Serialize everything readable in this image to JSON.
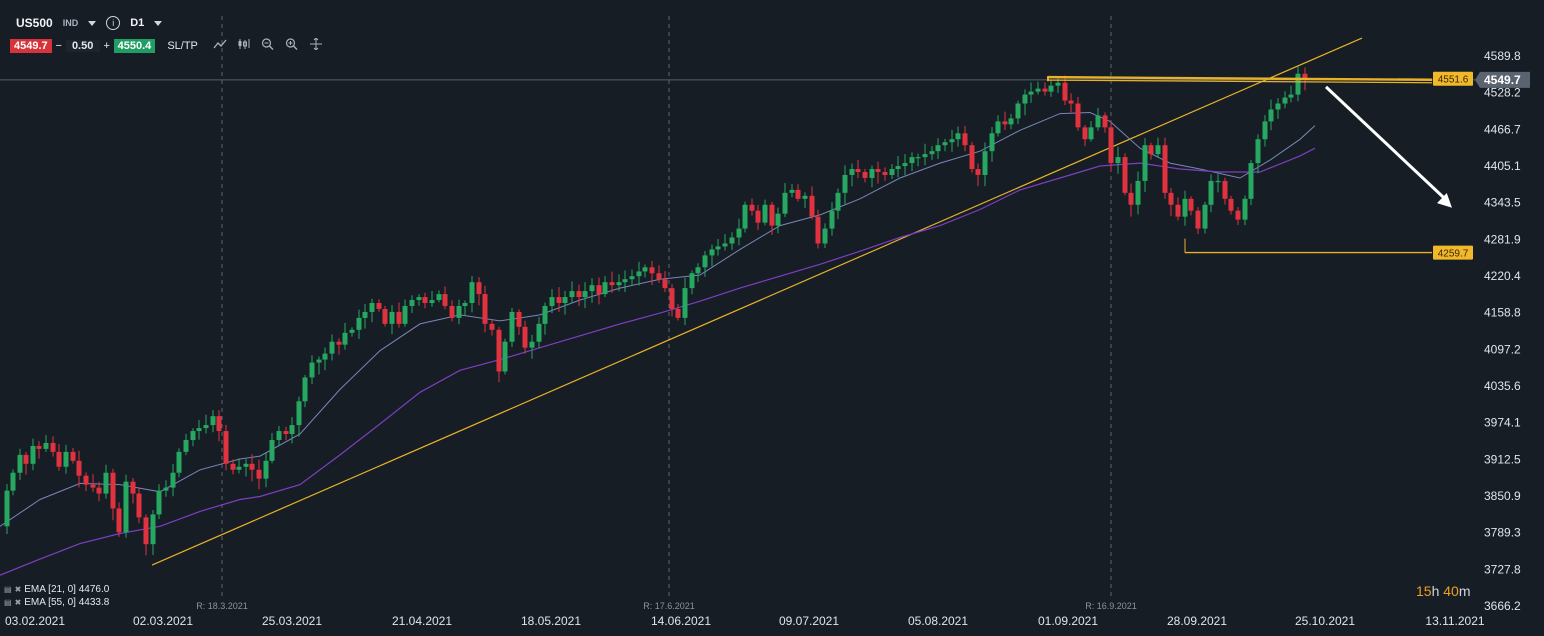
{
  "toolbar": {
    "symbol": "US500",
    "instrument_type": "IND",
    "timeframe": "D1",
    "bid": "4549.7",
    "ask": "4550.4",
    "quantity": "0.50",
    "minus": "−",
    "plus": "+",
    "sltp": "SL/TP",
    "info_icon": "info-icon",
    "tool_icons": [
      "line-chart-icon",
      "candlestick-icon",
      "zoom-out-icon",
      "zoom-in-icon",
      "crosshair-move-icon"
    ]
  },
  "legend": [
    {
      "label": "EMA [21, 0] 4476.0",
      "icons": "eye-off-icon close-icon"
    },
    {
      "label": "EMA [55, 0] 4433.8",
      "icons": "eye-off-icon close-icon"
    }
  ],
  "timer": {
    "h": "15",
    "h_unit": "h",
    "m": "40",
    "m_unit": "m"
  },
  "colors": {
    "background": "#161d25",
    "up_candle": "#26a861",
    "down_candle": "#e0323f",
    "ema21": "#7a86b8",
    "ema55": "#7d3fc0",
    "trendline": "#e8b12a",
    "current_price_tag": "#5a6470",
    "level_tag": "#f0b82a",
    "arrow": "#ffffff"
  },
  "chart_data": {
    "type": "candlestick",
    "symbol": "US500",
    "timeframe": "D1",
    "ylim": [
      3640,
      4630
    ],
    "y_ticks": [
      3666.2,
      3727.8,
      3789.3,
      3850.9,
      3912.5,
      3974.1,
      4035.6,
      4097.2,
      4158.8,
      4220.4,
      4281.9,
      4343.5,
      4405.1,
      4466.7,
      4528.2,
      4589.8
    ],
    "x_labels": [
      "03.02.2021",
      "02.03.2021",
      "25.03.2021",
      "21.04.2021",
      "18.05.2021",
      "14.06.2021",
      "09.07.2021",
      "05.08.2021",
      "01.09.2021",
      "28.09.2021",
      "25.10.2021",
      "13.11.2021"
    ],
    "rollover_markers": [
      "R: 18.3.2021",
      "R: 17.6.2021",
      "R: 16.9.2021"
    ],
    "current_price": 4549.7,
    "price_levels": [
      4551.6,
      4259.7
    ],
    "close_path": [
      [
        0,
        3800
      ],
      [
        7,
        3860
      ],
      [
        13,
        3890
      ],
      [
        20,
        3920
      ],
      [
        26,
        3905
      ],
      [
        33,
        3935
      ],
      [
        39,
        3930
      ],
      [
        46,
        3940
      ],
      [
        53,
        3925
      ],
      [
        59,
        3900
      ],
      [
        66,
        3925
      ],
      [
        73,
        3910
      ],
      [
        79,
        3885
      ],
      [
        86,
        3870
      ],
      [
        93,
        3865
      ],
      [
        99,
        3855
      ],
      [
        106,
        3890
      ],
      [
        113,
        3830
      ],
      [
        119,
        3790
      ],
      [
        126,
        3875
      ],
      [
        133,
        3855
      ],
      [
        139,
        3815
      ],
      [
        146,
        3770
      ],
      [
        153,
        3820
      ],
      [
        159,
        3860
      ],
      [
        166,
        3865
      ],
      [
        173,
        3890
      ],
      [
        179,
        3925
      ],
      [
        186,
        3945
      ],
      [
        193,
        3960
      ],
      [
        199,
        3965
      ],
      [
        206,
        3970
      ],
      [
        213,
        3985
      ],
      [
        219,
        3960
      ],
      [
        226,
        3905
      ],
      [
        233,
        3895
      ],
      [
        239,
        3900
      ],
      [
        246,
        3905
      ],
      [
        252,
        3895
      ],
      [
        259,
        3880
      ],
      [
        266,
        3910
      ],
      [
        272,
        3945
      ],
      [
        279,
        3960
      ],
      [
        286,
        3955
      ],
      [
        292,
        3970
      ],
      [
        299,
        4010
      ],
      [
        305,
        4050
      ],
      [
        312,
        4075
      ],
      [
        319,
        4080
      ],
      [
        325,
        4090
      ],
      [
        332,
        4110
      ],
      [
        339,
        4105
      ],
      [
        345,
        4125
      ],
      [
        352,
        4130
      ],
      [
        359,
        4150
      ],
      [
        365,
        4160
      ],
      [
        372,
        4175
      ],
      [
        379,
        4165
      ],
      [
        385,
        4140
      ],
      [
        392,
        4160
      ],
      [
        399,
        4140
      ],
      [
        405,
        4170
      ],
      [
        412,
        4180
      ],
      [
        419,
        4185
      ],
      [
        425,
        4175
      ],
      [
        432,
        4180
      ],
      [
        439,
        4190
      ],
      [
        445,
        4170
      ],
      [
        452,
        4150
      ],
      [
        459,
        4170
      ],
      [
        465,
        4175
      ],
      [
        472,
        4210
      ],
      [
        479,
        4190
      ],
      [
        485,
        4140
      ],
      [
        492,
        4130
      ],
      [
        499,
        4060
      ],
      [
        505,
        4110
      ],
      [
        512,
        4160
      ],
      [
        519,
        4135
      ],
      [
        525,
        4100
      ],
      [
        532,
        4110
      ],
      [
        539,
        4140
      ],
      [
        545,
        4170
      ],
      [
        552,
        4185
      ],
      [
        559,
        4175
      ],
      [
        565,
        4185
      ],
      [
        572,
        4195
      ],
      [
        579,
        4185
      ],
      [
        585,
        4195
      ],
      [
        592,
        4205
      ],
      [
        599,
        4190
      ],
      [
        605,
        4210
      ],
      [
        612,
        4205
      ],
      [
        619,
        4210
      ],
      [
        625,
        4215
      ],
      [
        632,
        4220
      ],
      [
        639,
        4228
      ],
      [
        645,
        4235
      ],
      [
        652,
        4225
      ],
      [
        659,
        4215
      ],
      [
        665,
        4200
      ],
      [
        672,
        4165
      ],
      [
        678,
        4150
      ],
      [
        685,
        4200
      ],
      [
        692,
        4225
      ],
      [
        698,
        4235
      ],
      [
        705,
        4255
      ],
      [
        712,
        4265
      ],
      [
        718,
        4270
      ],
      [
        725,
        4275
      ],
      [
        732,
        4285
      ],
      [
        739,
        4300
      ],
      [
        745,
        4340
      ],
      [
        752,
        4330
      ],
      [
        758,
        4310
      ],
      [
        765,
        4340
      ],
      [
        772,
        4305
      ],
      [
        778,
        4325
      ],
      [
        785,
        4360
      ],
      [
        792,
        4365
      ],
      [
        798,
        4350
      ],
      [
        805,
        4355
      ],
      [
        812,
        4320
      ],
      [
        818,
        4275
      ],
      [
        825,
        4300
      ],
      [
        832,
        4330
      ],
      [
        838,
        4360
      ],
      [
        845,
        4390
      ],
      [
        852,
        4400
      ],
      [
        858,
        4395
      ],
      [
        865,
        4385
      ],
      [
        872,
        4400
      ],
      [
        878,
        4395
      ],
      [
        885,
        4390
      ],
      [
        892,
        4400
      ],
      [
        898,
        4405
      ],
      [
        905,
        4410
      ],
      [
        912,
        4420
      ],
      [
        918,
        4420
      ],
      [
        925,
        4425
      ],
      [
        932,
        4430
      ],
      [
        938,
        4440
      ],
      [
        945,
        4445
      ],
      [
        952,
        4450
      ],
      [
        958,
        4460
      ],
      [
        965,
        4440
      ],
      [
        972,
        4400
      ],
      [
        978,
        4390
      ],
      [
        985,
        4430
      ],
      [
        992,
        4460
      ],
      [
        998,
        4480
      ],
      [
        1005,
        4475
      ],
      [
        1011,
        4485
      ],
      [
        1018,
        4510
      ],
      [
        1025,
        4525
      ],
      [
        1031,
        4530
      ],
      [
        1038,
        4535
      ],
      [
        1045,
        4530
      ],
      [
        1051,
        4540
      ],
      [
        1058,
        4545
      ],
      [
        1065,
        4515
      ],
      [
        1071,
        4510
      ],
      [
        1078,
        4470
      ],
      [
        1085,
        4450
      ],
      [
        1091,
        4470
      ],
      [
        1098,
        4490
      ],
      [
        1105,
        4470
      ],
      [
        1111,
        4410
      ],
      [
        1118,
        4420
      ],
      [
        1125,
        4360
      ],
      [
        1131,
        4340
      ],
      [
        1138,
        4380
      ],
      [
        1145,
        4440
      ],
      [
        1151,
        4425
      ],
      [
        1158,
        4440
      ],
      [
        1165,
        4360
      ],
      [
        1171,
        4340
      ],
      [
        1178,
        4320
      ],
      [
        1185,
        4350
      ],
      [
        1191,
        4330
      ],
      [
        1198,
        4300
      ],
      [
        1205,
        4340
      ],
      [
        1211,
        4380
      ],
      [
        1218,
        4380
      ],
      [
        1225,
        4350
      ],
      [
        1231,
        4330
      ],
      [
        1238,
        4315
      ],
      [
        1245,
        4350
      ],
      [
        1251,
        4410
      ],
      [
        1258,
        4450
      ],
      [
        1265,
        4480
      ],
      [
        1271,
        4500
      ],
      [
        1278,
        4510
      ],
      [
        1285,
        4520
      ],
      [
        1291,
        4525
      ],
      [
        1298,
        4560
      ],
      [
        1305,
        4550
      ]
    ],
    "ema21_path": [
      [
        0,
        3800
      ],
      [
        40,
        3845
      ],
      [
        80,
        3872
      ],
      [
        120,
        3870
      ],
      [
        160,
        3858
      ],
      [
        200,
        3895
      ],
      [
        240,
        3913
      ],
      [
        260,
        3918
      ],
      [
        300,
        3955
      ],
      [
        340,
        4030
      ],
      [
        380,
        4095
      ],
      [
        420,
        4140
      ],
      [
        460,
        4155
      ],
      [
        500,
        4145
      ],
      [
        540,
        4155
      ],
      [
        580,
        4180
      ],
      [
        620,
        4200
      ],
      [
        660,
        4215
      ],
      [
        700,
        4222
      ],
      [
        740,
        4265
      ],
      [
        780,
        4305
      ],
      [
        820,
        4323
      ],
      [
        860,
        4350
      ],
      [
        900,
        4385
      ],
      [
        940,
        4410
      ],
      [
        980,
        4430
      ],
      [
        1020,
        4465
      ],
      [
        1060,
        4493
      ],
      [
        1090,
        4495
      ],
      [
        1110,
        4480
      ],
      [
        1140,
        4435
      ],
      [
        1170,
        4410
      ],
      [
        1200,
        4400
      ],
      [
        1240,
        4385
      ],
      [
        1270,
        4415
      ],
      [
        1300,
        4450
      ],
      [
        1315,
        4473
      ]
    ],
    "ema55_path": [
      [
        0,
        3718
      ],
      [
        40,
        3745
      ],
      [
        80,
        3771
      ],
      [
        120,
        3788
      ],
      [
        160,
        3800
      ],
      [
        200,
        3825
      ],
      [
        240,
        3845
      ],
      [
        260,
        3850
      ],
      [
        300,
        3870
      ],
      [
        340,
        3920
      ],
      [
        380,
        3972
      ],
      [
        420,
        4025
      ],
      [
        460,
        4062
      ],
      [
        500,
        4080
      ],
      [
        540,
        4100
      ],
      [
        580,
        4120
      ],
      [
        620,
        4140
      ],
      [
        660,
        4158
      ],
      [
        700,
        4178
      ],
      [
        740,
        4200
      ],
      [
        780,
        4220
      ],
      [
        820,
        4240
      ],
      [
        860,
        4262
      ],
      [
        900,
        4285
      ],
      [
        940,
        4305
      ],
      [
        980,
        4332
      ],
      [
        1020,
        4365
      ],
      [
        1060,
        4385
      ],
      [
        1100,
        4405
      ],
      [
        1140,
        4410
      ],
      [
        1180,
        4400
      ],
      [
        1220,
        4395
      ],
      [
        1260,
        4395
      ],
      [
        1300,
        4422
      ],
      [
        1315,
        4435
      ]
    ],
    "trendline": [
      [
        152,
        3735
      ],
      [
        1362,
        4620
      ]
    ],
    "support_level_line": [
      [
        1185,
        4259.7
      ],
      [
        1432,
        4259.7
      ]
    ],
    "resistance_level_line": [
      [
        1048,
        4556
      ],
      [
        1432,
        4551.6
      ]
    ],
    "projection_arrow": [
      [
        1326,
        4538
      ],
      [
        1452,
        4335
      ]
    ]
  }
}
